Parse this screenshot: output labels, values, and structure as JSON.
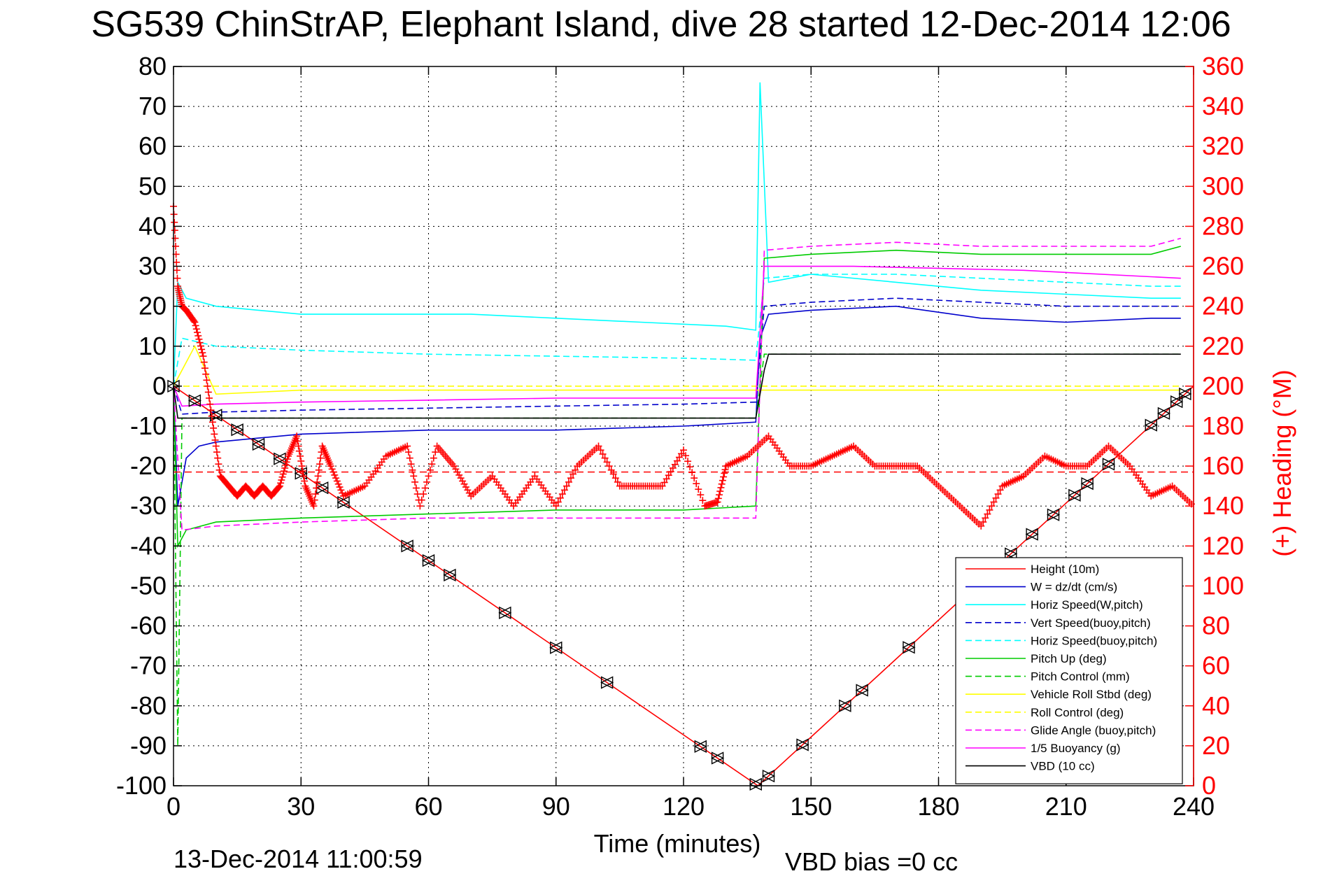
{
  "chart_data": {
    "type": "line",
    "title": "SG539 ChinStrAP, Elephant Island, dive 28 started 12-Dec-2014 12:06",
    "xlabel": "Time (minutes)",
    "ylabel_right": "(+) Heading (°M)",
    "xlim": [
      0,
      240
    ],
    "ylim": [
      -100,
      80
    ],
    "ylim_right": [
      0,
      360
    ],
    "x_ticks": [
      "0",
      "30",
      "60",
      "90",
      "120",
      "150",
      "180",
      "210",
      "240"
    ],
    "y_ticks": [
      "80",
      "70",
      "60",
      "50",
      "40",
      "30",
      "20",
      "10",
      "0",
      "-10",
      "-20",
      "-30",
      "-40",
      "-50",
      "-60",
      "-70",
      "-80",
      "-90",
      "-100"
    ],
    "y_ticks_right": [
      "360",
      "340",
      "320",
      "300",
      "280",
      "260",
      "240",
      "220",
      "200",
      "180",
      "160",
      "140",
      "120",
      "100",
      "80",
      "60",
      "40",
      "20",
      "0"
    ],
    "grid": true,
    "legend_position": "bottom-right",
    "footer_left": "13-Dec-2014 11:00:59",
    "footer_right": "VBD bias =0 cc",
    "series": [
      {
        "name": "Height (10m)",
        "color": "#ff0000",
        "style": "solid",
        "x": [
          0,
          137.5,
          240
        ],
        "y": [
          0,
          -100,
          0
        ]
      },
      {
        "name": "W = dz/dt (cm/s)",
        "color": "#0000cc",
        "style": "solid",
        "x": [
          0,
          1,
          3,
          6,
          10,
          20,
          30,
          60,
          90,
          120,
          137,
          138,
          140,
          150,
          170,
          190,
          210,
          230,
          237
        ],
        "y": [
          0,
          -30,
          -18,
          -15,
          -14,
          -13,
          -12,
          -11,
          -11,
          -10,
          -9,
          12,
          18,
          19,
          20,
          17,
          16,
          17,
          17
        ]
      },
      {
        "name": "Horiz Speed(W,pitch)",
        "color": "#00ffff",
        "style": "solid",
        "x": [
          0,
          1,
          3,
          10,
          20,
          30,
          50,
          70,
          90,
          110,
          130,
          137,
          138,
          140,
          150,
          170,
          190,
          210,
          230,
          237
        ],
        "y": [
          0,
          26,
          22,
          20,
          19,
          18,
          18,
          18,
          17,
          16,
          15,
          14,
          76,
          26,
          28,
          26,
          24,
          23,
          22,
          22
        ]
      },
      {
        "name": "Vert Speed(buoy,pitch)",
        "color": "#0000cc",
        "style": "dashed",
        "x": [
          0,
          2,
          10,
          30,
          60,
          90,
          120,
          137,
          139,
          150,
          170,
          190,
          210,
          230,
          237
        ],
        "y": [
          0,
          -7,
          -6.5,
          -6,
          -5.5,
          -5,
          -4.5,
          -4,
          20,
          21,
          22,
          21,
          20,
          20,
          20
        ]
      },
      {
        "name": "Horiz Speed(buoy,pitch)",
        "color": "#00ffff",
        "style": "dashed",
        "x": [
          0,
          2,
          10,
          30,
          60,
          90,
          120,
          137,
          139,
          150,
          170,
          190,
          210,
          230,
          237
        ],
        "y": [
          0,
          12,
          10,
          9,
          8,
          7.5,
          7,
          6.5,
          27,
          28,
          28,
          27,
          26,
          25,
          25
        ]
      },
      {
        "name": "Pitch Up (deg)",
        "color": "#00cc00",
        "style": "solid",
        "x": [
          0,
          1,
          3,
          10,
          30,
          60,
          90,
          120,
          137,
          139,
          150,
          170,
          190,
          210,
          230,
          237
        ],
        "y": [
          0,
          -40,
          -36,
          -34,
          -33,
          -32,
          -31,
          -31,
          -30,
          32,
          33,
          34,
          33,
          33,
          33,
          35
        ]
      },
      {
        "name": "Pitch Control (mm)",
        "color": "#00cc00",
        "style": "dashed",
        "x": [
          0,
          1,
          2,
          10,
          60,
          120,
          137,
          139,
          237
        ],
        "y": [
          0,
          -90,
          -8,
          -8,
          -8,
          -8,
          -8,
          8,
          8
        ]
      },
      {
        "name": "Vehicle Roll Stbd (deg)",
        "color": "#ffff00",
        "style": "solid",
        "x": [
          0,
          5,
          10,
          30,
          60,
          90,
          120,
          137,
          140,
          170,
          200,
          237
        ],
        "y": [
          0,
          10,
          -2,
          -1,
          -1,
          -1,
          -1,
          -1,
          -1,
          -1,
          -1,
          -1
        ]
      },
      {
        "name": "Roll Control (deg)",
        "color": "#ffff00",
        "style": "dashed",
        "x": [
          0,
          10,
          60,
          120,
          137,
          140,
          200,
          237
        ],
        "y": [
          0,
          0,
          0,
          0,
          0,
          0,
          0,
          0
        ]
      },
      {
        "name": "Glide Angle (buoy,pitch)",
        "color": "#ff00ff",
        "style": "dashed",
        "x": [
          0,
          2,
          10,
          30,
          60,
          90,
          120,
          137,
          139,
          150,
          170,
          190,
          210,
          230,
          237
        ],
        "y": [
          0,
          -36,
          -35,
          -34,
          -33,
          -33,
          -33,
          -33,
          34,
          35,
          36,
          35,
          35,
          35,
          37
        ]
      },
      {
        "name": "1/5 Buoyancy (g)",
        "color": "#ff00ff",
        "style": "solid",
        "x": [
          0,
          2,
          10,
          30,
          60,
          90,
          120,
          137,
          139,
          160,
          200,
          237
        ],
        "y": [
          0,
          -5,
          -4.5,
          -4,
          -3.5,
          -3,
          -3,
          -3,
          30,
          30,
          29,
          27
        ]
      },
      {
        "name": "VBD (10 cc)",
        "color": "#000000",
        "style": "solid",
        "x": [
          0,
          1,
          2,
          60,
          120,
          137,
          139,
          140,
          237
        ],
        "y": [
          0,
          -8,
          -8,
          -8,
          -8,
          -8,
          4,
          8,
          8
        ]
      }
    ],
    "heading_series": {
      "name": "Heading (°M)",
      "color": "#ff0000",
      "marker": "+",
      "mean_heading": 157,
      "x": [
        0,
        1,
        2,
        3,
        5,
        7,
        9,
        11,
        13,
        15,
        17,
        19,
        21,
        23,
        25,
        27,
        29,
        31,
        33,
        35,
        37,
        40,
        45,
        50,
        55,
        58,
        62,
        66,
        70,
        75,
        80,
        85,
        90,
        95,
        100,
        105,
        110,
        115,
        120,
        125,
        128,
        130,
        135,
        140,
        145,
        150,
        155,
        160,
        165,
        170,
        175,
        180,
        185,
        190,
        195,
        200,
        205,
        210,
        215,
        220,
        225,
        230,
        235,
        240
      ],
      "y": [
        290,
        250,
        240,
        238,
        232,
        215,
        185,
        155,
        150,
        145,
        150,
        145,
        150,
        145,
        150,
        165,
        175,
        150,
        140,
        170,
        160,
        145,
        150,
        165,
        170,
        140,
        170,
        160,
        145,
        155,
        140,
        155,
        140,
        160,
        170,
        150,
        150,
        150,
        168,
        140,
        142,
        160,
        165,
        175,
        160,
        160,
        165,
        170,
        160,
        160,
        160,
        150,
        140,
        130,
        150,
        155,
        165,
        160,
        160,
        170,
        160,
        145,
        150,
        140
      ]
    },
    "markers_height_x": [
      0,
      5,
      10,
      15,
      20,
      25,
      30,
      35,
      40,
      55,
      60,
      65,
      78,
      90,
      102,
      124,
      128,
      137,
      140,
      148,
      158,
      162,
      173,
      197,
      202,
      207,
      212,
      215,
      220,
      230,
      233,
      236,
      238
    ]
  }
}
